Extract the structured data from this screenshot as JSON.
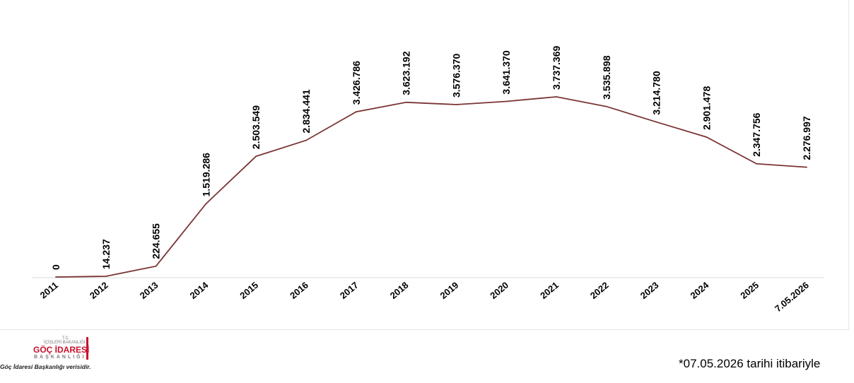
{
  "chart_data": {
    "type": "line",
    "categories": [
      "2011",
      "2012",
      "2013",
      "2014",
      "2015",
      "2016",
      "2017",
      "2018",
      "2019",
      "2020",
      "2021",
      "2022",
      "2023",
      "2024",
      "2025",
      "7.05.2026"
    ],
    "values": [
      0,
      14237,
      224655,
      1519286,
      2503549,
      2834441,
      3426786,
      3623192,
      3576370,
      3641370,
      3737369,
      3535898,
      3214780,
      2901478,
      2347756,
      2276997
    ],
    "data_labels": [
      "0",
      "14.237",
      "224.655",
      "1.519.286",
      "2.503.549",
      "2.834.441",
      "3.426.786",
      "3.623.192",
      "3.576.370",
      "3.641.370",
      "3.737.369",
      "3.535.898",
      "3.214.780",
      "2.901.478",
      "2.347.756",
      "2.276.997"
    ],
    "ylim": [
      0,
      4000000
    ],
    "grid": false,
    "legend": "none",
    "title": "",
    "xlabel": "",
    "ylabel": ""
  },
  "colors": {
    "line": "#7b3434",
    "baseline": "#d9d9d9",
    "logo_red": "#c8102e",
    "logo_gray": "#7a7a7a"
  },
  "logo": {
    "emblem": "crescent-star-icon",
    "line1": "T.C.",
    "line2": "İÇİŞLERİ BAKANLIĞI",
    "org": "GÖÇ İDARESİ",
    "sub": "BAŞKANLIĞI"
  },
  "source_note": "Göç İdaresi Başkanlığı verisidir.",
  "footnote": "*07.05.2026 tarihi itibariyle"
}
